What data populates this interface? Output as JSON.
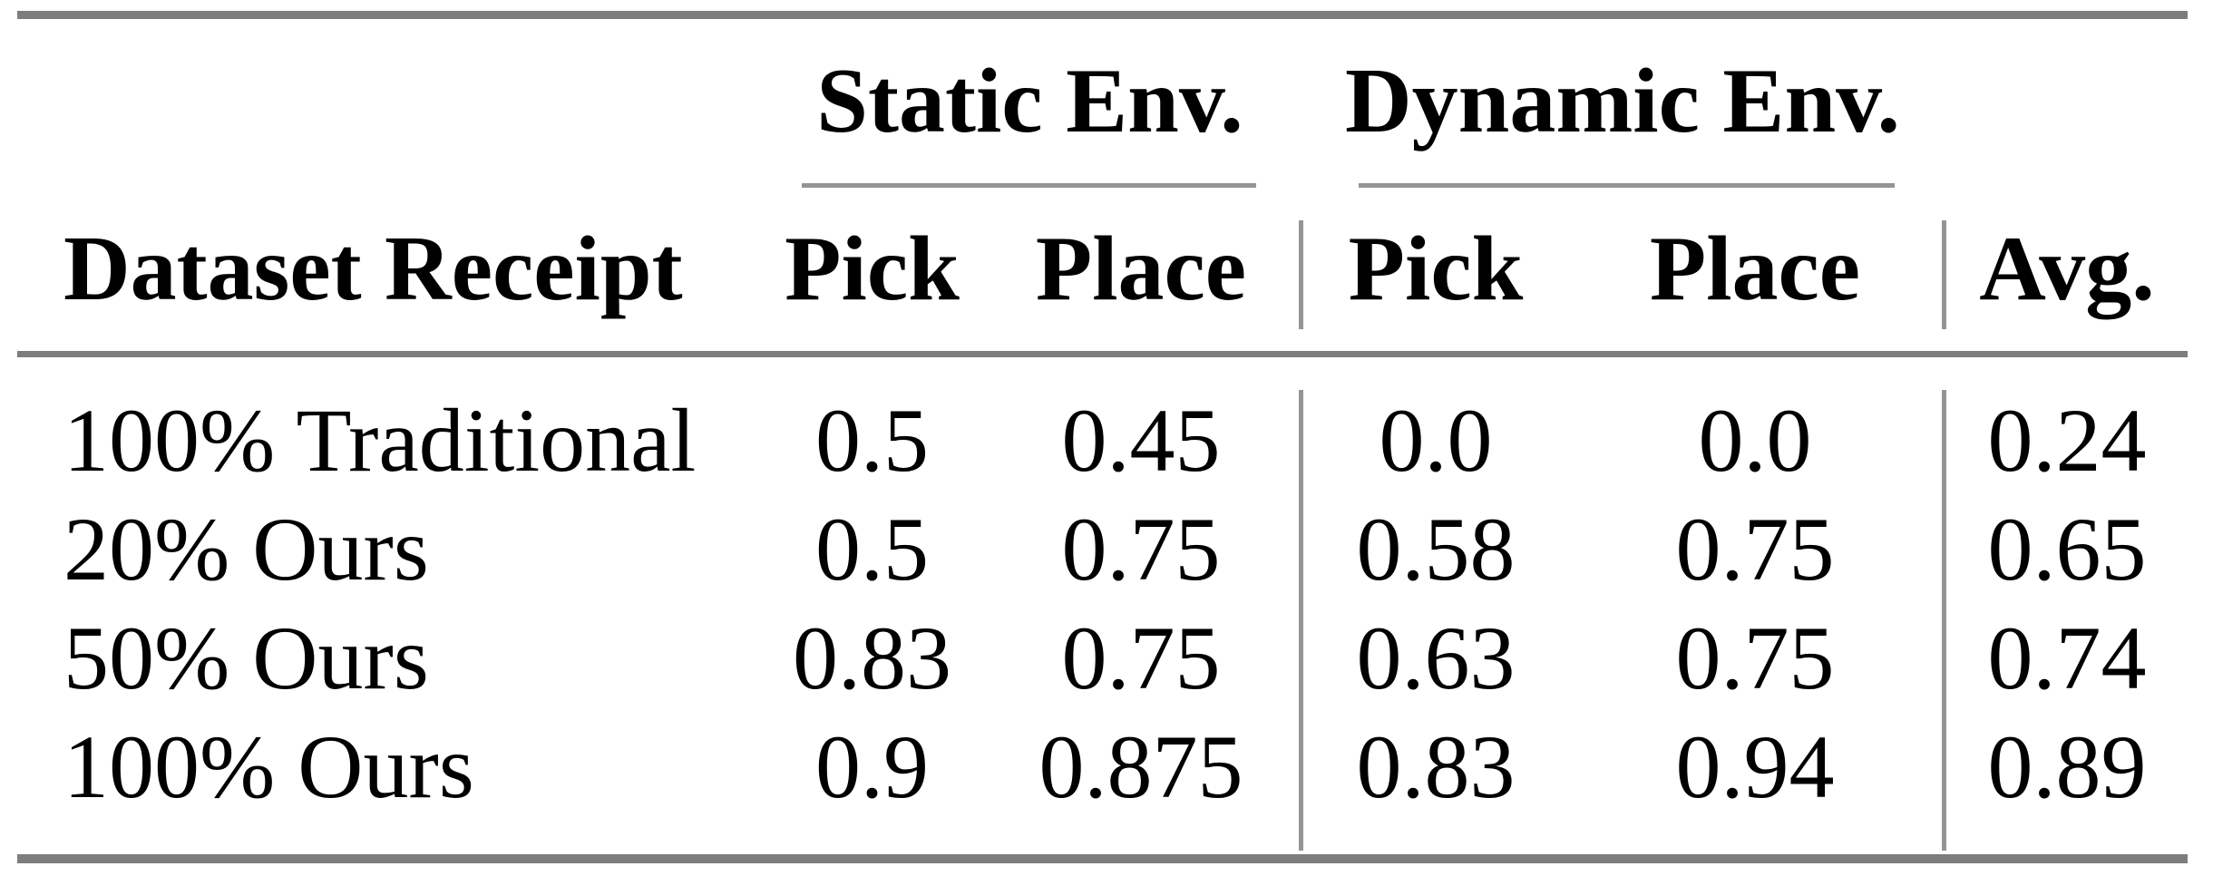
{
  "colors": {
    "background": "#ffffff",
    "text": "#000000",
    "heavy_rule": "#7d7d7d",
    "light_rule": "#949494"
  },
  "table": {
    "group_headers": {
      "static": "Static Env.",
      "dynamic": "Dynamic Env."
    },
    "column_headers": {
      "dataset": "Dataset Receipt",
      "static_pick": "Pick",
      "static_place": "Place",
      "dynamic_pick": "Pick",
      "dynamic_place": "Place",
      "avg": "Avg."
    },
    "rows": [
      {
        "dataset": "100% Traditional",
        "static_pick": "0.5",
        "static_place": "0.45",
        "dynamic_pick": "0.0",
        "dynamic_place": "0.0",
        "avg": "0.24"
      },
      {
        "dataset": "20% Ours",
        "static_pick": "0.5",
        "static_place": "0.75",
        "dynamic_pick": "0.58",
        "dynamic_place": "0.75",
        "avg": "0.65"
      },
      {
        "dataset": "50% Ours",
        "static_pick": "0.83",
        "static_place": "0.75",
        "dynamic_pick": "0.63",
        "dynamic_place": "0.75",
        "avg": "0.74"
      },
      {
        "dataset": "100% Ours",
        "static_pick": "0.9",
        "static_place": "0.875",
        "dynamic_pick": "0.83",
        "dynamic_place": "0.94",
        "avg": "0.89"
      }
    ]
  }
}
